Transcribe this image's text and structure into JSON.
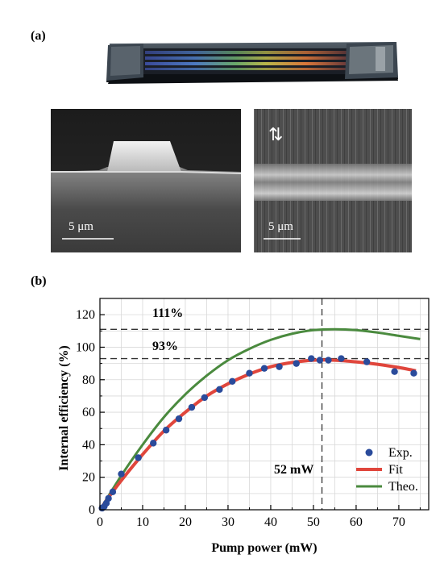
{
  "panel_a": {
    "label": "(a)",
    "sem_left": {
      "scale_label": "5 μm"
    },
    "sem_right": {
      "scale_label": "5 μm",
      "arrow_symbol": "⇅"
    }
  },
  "panel_b": {
    "label": "(b)",
    "annotations": {
      "h_line_top": "111%",
      "h_line_mid": "93%",
      "v_line": "52 mW"
    }
  },
  "chart_data": {
    "type": "line",
    "xlabel": "Pump power (mW)",
    "ylabel": "Internal efficiency (%)",
    "xlim": [
      0,
      77
    ],
    "ylim": [
      0,
      130
    ],
    "xticks": [
      0,
      10,
      20,
      30,
      40,
      50,
      60,
      70
    ],
    "yticks": [
      0,
      20,
      40,
      60,
      80,
      100,
      120
    ],
    "grid": true,
    "legend_position": "bottom-right",
    "reference_lines": {
      "horizontal": [
        111,
        93
      ],
      "vertical": [
        52
      ]
    },
    "series": [
      {
        "name": "Exp.",
        "kind": "scatter",
        "color": "#2a4b9b",
        "x": [
          0.5,
          1,
          1.5,
          2,
          3,
          5,
          9,
          12.5,
          15.5,
          18.5,
          21.5,
          24.5,
          28,
          31,
          35,
          38.5,
          42,
          46,
          49.5,
          51.5,
          53.5,
          56.5,
          62.5,
          69,
          73.5
        ],
        "y": [
          1,
          2,
          4,
          7,
          11,
          22,
          32,
          41,
          49,
          56,
          63,
          69,
          74,
          79,
          84,
          87,
          88,
          90,
          93,
          92,
          92,
          93,
          91,
          85,
          84
        ]
      },
      {
        "name": "Fit",
        "kind": "line",
        "color": "#e0463c",
        "x": [
          0,
          2,
          5,
          10,
          15,
          20,
          25,
          30,
          35,
          40,
          45,
          50,
          55,
          60,
          65,
          70,
          74
        ],
        "y": [
          0,
          7.5,
          18,
          34,
          48.5,
          60,
          70,
          77.5,
          83.5,
          88,
          90.6,
          92,
          92,
          91,
          89.5,
          87.5,
          85.5
        ]
      },
      {
        "name": "Theo.",
        "kind": "line",
        "color": "#4a8a3e",
        "x": [
          0,
          5,
          10,
          15,
          20,
          25,
          30,
          35,
          40,
          45,
          50,
          55,
          60,
          65,
          70,
          75
        ],
        "y": [
          0,
          21,
          40,
          57,
          71,
          82.5,
          92,
          99,
          104.5,
          108.3,
          110.5,
          111,
          110.5,
          109,
          107,
          105
        ]
      }
    ]
  }
}
